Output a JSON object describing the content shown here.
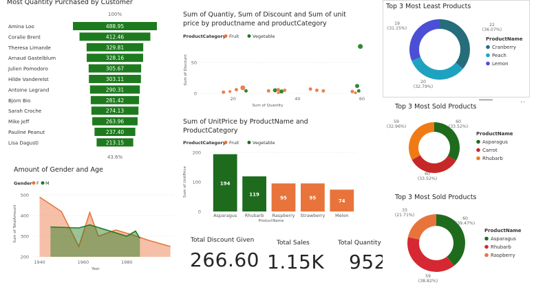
{
  "funnel": {
    "title": "Most Quantity Purchased by Customer",
    "top_pct": "100%",
    "bottom_pct": "43.6%",
    "color": "#1e7a1e",
    "rows": [
      {
        "name": "Amina Loo",
        "value": 488.95,
        "label": "488.95"
      },
      {
        "name": "Coralie Brent",
        "value": 412.46,
        "label": "412.46"
      },
      {
        "name": "Theresa Limande",
        "value": 329.81,
        "label": "329.81"
      },
      {
        "name": "Arnaud Gastelblum",
        "value": 328.16,
        "label": "328.16"
      },
      {
        "name": "Julien Pomodoro",
        "value": 305.67,
        "label": "305.67"
      },
      {
        "name": "Hilde Vanderelst",
        "value": 303.11,
        "label": "303.11"
      },
      {
        "name": "Antoine Legrand",
        "value": 290.31,
        "label": "290.31"
      },
      {
        "name": "Bjorn Bio",
        "value": 281.42,
        "label": "281.42"
      },
      {
        "name": "Sarah Croche",
        "value": 274.13,
        "label": "274.13"
      },
      {
        "name": "Mike Jeff",
        "value": 263.96,
        "label": "263.96"
      },
      {
        "name": "Pauline Peanut",
        "value": 237.4,
        "label": "237.40"
      },
      {
        "name": "Lisa Dagusti",
        "value": 213.15,
        "label": "213.15"
      }
    ]
  },
  "scatter": {
    "title_line1": "Sum of Quantiy, Sum of Discount and Sum of unit",
    "title_line2": "price by productname and productCategory",
    "legend_title": "ProductCategory",
    "legend": [
      {
        "name": "Fruit",
        "color": "#e8743b"
      },
      {
        "name": "Vegetable",
        "color": "#1e7a1e"
      }
    ],
    "xlabel": "Sum of Quantity",
    "ylabel": "Sum of Discount",
    "xticks": [
      "20",
      "40",
      "60"
    ],
    "yticks": [
      "0",
      "50"
    ],
    "xlim": [
      10,
      60
    ],
    "ylim": [
      0,
      80
    ],
    "points": [
      {
        "x": 59.5,
        "y": 76,
        "c": "Vegetable",
        "r": 3.5
      },
      {
        "x": 58.5,
        "y": 12,
        "c": "Vegetable",
        "r": 3
      },
      {
        "x": 59,
        "y": 4,
        "c": "Vegetable",
        "r": 2.5
      },
      {
        "x": 23,
        "y": 9,
        "c": "Fruit",
        "r": 3.5
      },
      {
        "x": 21,
        "y": 6,
        "c": "Fruit",
        "r": 2.5
      },
      {
        "x": 24,
        "y": 4,
        "c": "Vegetable",
        "r": 2.5
      },
      {
        "x": 17,
        "y": 2,
        "c": "Fruit",
        "r": 2.5
      },
      {
        "x": 19,
        "y": 3,
        "c": "Fruit",
        "r": 2
      },
      {
        "x": 31,
        "y": 4,
        "c": "Fruit",
        "r": 2.5
      },
      {
        "x": 33,
        "y": 5,
        "c": "Vegetable",
        "r": 3
      },
      {
        "x": 34,
        "y": 6,
        "c": "Fruit",
        "r": 2.5
      },
      {
        "x": 35,
        "y": 3,
        "c": "Vegetable",
        "r": 3
      },
      {
        "x": 36,
        "y": 5,
        "c": "Fruit",
        "r": 2.5
      },
      {
        "x": 34,
        "y": 1,
        "c": "Fruit",
        "r": 2
      },
      {
        "x": 44,
        "y": 7,
        "c": "Fruit",
        "r": 2.5
      },
      {
        "x": 46,
        "y": 5,
        "c": "Fruit",
        "r": 2.5
      },
      {
        "x": 48,
        "y": 4,
        "c": "Fruit",
        "r": 2.5
      },
      {
        "x": 57,
        "y": 3,
        "c": "Fruit",
        "r": 2.5
      },
      {
        "x": 58,
        "y": 1,
        "c": "Fruit",
        "r": 2
      }
    ]
  },
  "barchart": {
    "title_line1": "Sum of UnitPrice by ProductName and",
    "title_line2": "ProductCategory",
    "legend_title": "ProductCategory",
    "legend": [
      {
        "name": "Fruit",
        "color": "#e8743b"
      },
      {
        "name": "Vegetable",
        "color": "#1e6b1e"
      }
    ],
    "xlabel": "ProductName",
    "ylabel": "Sum of UnitPrice",
    "yticks": [
      "0",
      "100",
      "200"
    ],
    "ylim": [
      0,
      200
    ],
    "bars": [
      {
        "name": "Asparagus",
        "value": 194,
        "label": "194",
        "c": "Vegetable"
      },
      {
        "name": "Rhubarb",
        "value": 119,
        "label": "119",
        "c": "Vegetable"
      },
      {
        "name": "Raspberry",
        "value": 95,
        "label": "95",
        "c": "Fruit"
      },
      {
        "name": "Strawberry",
        "value": 95,
        "label": "95",
        "c": "Fruit"
      },
      {
        "name": "Melon",
        "value": 74,
        "label": "74",
        "c": "Fruit"
      }
    ]
  },
  "area": {
    "title": "Amount of Gender and Age",
    "legend_title": "Gender",
    "legend": [
      {
        "name": "F",
        "color": "#e8743b"
      },
      {
        "name": "M",
        "color": "#1e7a1e"
      }
    ],
    "xlabel": "Year",
    "ylabel": "Sum of TotalAmount",
    "xticks": [
      "1940",
      "1960",
      "1980"
    ],
    "yticks": [
      "200",
      "300",
      "400",
      "500"
    ],
    "xlim": [
      1937,
      2002
    ],
    "ylim": [
      200,
      520
    ],
    "F": [
      [
        1940,
        490
      ],
      [
        1950,
        420
      ],
      [
        1958,
        250
      ],
      [
        1963,
        415
      ],
      [
        1967,
        300
      ],
      [
        1975,
        330
      ],
      [
        1983,
        305
      ],
      [
        1990,
        280
      ],
      [
        2000,
        250
      ]
    ],
    "M": [
      [
        1945,
        345
      ],
      [
        1958,
        340
      ],
      [
        1963,
        355
      ],
      [
        1980,
        300
      ],
      [
        1984,
        325
      ],
      [
        1986,
        290
      ]
    ]
  },
  "kpis": [
    {
      "label": "Total Discount Given",
      "value": "266.60"
    },
    {
      "label": "Total Sales",
      "value": "1.15K"
    },
    {
      "label": "Total Quantity Sold",
      "value": "952"
    }
  ],
  "donut1": {
    "title": "Top 3 Most Least Products",
    "legend_title": "ProductName",
    "slices": [
      {
        "name": "Cranberry",
        "value": 22,
        "pct": "22",
        "pct2": "(36.07%)",
        "color": "#256d7b"
      },
      {
        "name": "Peach",
        "value": 20,
        "pct": "20",
        "pct2": "(32.79%)",
        "color": "#1fa2c0"
      },
      {
        "name": "Lemon",
        "value": 19,
        "pct": "19",
        "pct2": "(31.15%)",
        "color": "#4b4fd6"
      }
    ]
  },
  "donut2": {
    "title": "Top 3 Most Sold Products",
    "legend_title": "ProductName",
    "slices": [
      {
        "name": "Asparagus",
        "value": 60,
        "pct": "60",
        "pct2": "(33.52%)",
        "color": "#1e6b1e"
      },
      {
        "name": "Carrot",
        "value": 60,
        "pct": "60",
        "pct2": "(33.52%)",
        "color": "#c62828"
      },
      {
        "name": "Rhubarb",
        "value": 59,
        "pct": "59",
        "pct2": "(32.96%)",
        "color": "#f07b16"
      }
    ]
  },
  "donut3": {
    "title": "Top 3 Most Sold Products",
    "legend_title": "ProductName",
    "slices": [
      {
        "name": "Asparagus",
        "value": 60,
        "pct": "60",
        "pct2": "(39.47%)",
        "color": "#1e6b1e"
      },
      {
        "name": "Rhubarb",
        "value": 59,
        "pct": "59",
        "pct2": "(38.82%)",
        "color": "#d62832"
      },
      {
        "name": "Raspberry",
        "value": 33,
        "pct": "33",
        "pct2": "(21.71%)",
        "color": "#e8743b"
      }
    ]
  },
  "chart_data": [
    {
      "type": "bar",
      "title": "Most Quantity Purchased by Customer",
      "categories": [
        "Amina Loo",
        "Coralie Brent",
        "Theresa Limande",
        "Arnaud Gastelblum",
        "Julien Pomodoro",
        "Hilde Vanderelst",
        "Antoine Legrand",
        "Bjorn Bio",
        "Sarah Croche",
        "Mike Jeff",
        "Pauline Peanut",
        "Lisa Dagusti"
      ],
      "values": [
        488.95,
        412.46,
        329.81,
        328.16,
        305.67,
        303.11,
        290.31,
        281.42,
        274.13,
        263.96,
        237.4,
        213.15
      ]
    },
    {
      "type": "bar",
      "title": "Sum of UnitPrice by ProductName and ProductCategory",
      "categories": [
        "Asparagus",
        "Rhubarb",
        "Raspberry",
        "Strawberry",
        "Melon"
      ],
      "values": [
        194,
        119,
        95,
        95,
        74
      ],
      "ylim": [
        0,
        200
      ]
    },
    {
      "type": "pie",
      "title": "Top 3 Most Least Products",
      "categories": [
        "Cranberry",
        "Peach",
        "Lemon"
      ],
      "values": [
        22,
        20,
        19
      ]
    },
    {
      "type": "pie",
      "title": "Top 3 Most Sold Products",
      "categories": [
        "Asparagus",
        "Carrot",
        "Rhubarb"
      ],
      "values": [
        60,
        60,
        59
      ]
    },
    {
      "type": "pie",
      "title": "Top 3 Most Sold Products",
      "categories": [
        "Asparagus",
        "Rhubarb",
        "Raspberry"
      ],
      "values": [
        60,
        59,
        33
      ]
    }
  ]
}
